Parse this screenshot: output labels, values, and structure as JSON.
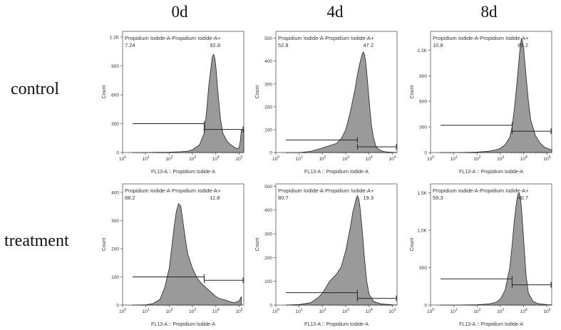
{
  "columns": [
    "0d",
    "4d",
    "8d"
  ],
  "rows": [
    "control",
    "treatment"
  ],
  "chart_data": [
    {
      "type": "area",
      "condition": "control",
      "day": "0d",
      "gate_title": "Propidium Iodide-A-Propidium Iodide-A+",
      "gate_left_pct": "7.24",
      "gate_right_pct": "92.8",
      "xlabel": "FL13-A :: Propidium Iodide-A",
      "ylabel": "Count",
      "yticks": [
        "0",
        "300",
        "600",
        "900",
        "1.2K"
      ],
      "ylim": [
        0,
        1260
      ],
      "x": [
        0.4,
        1.0,
        1.5,
        2.0,
        2.5,
        2.8,
        3.0,
        3.3,
        3.5,
        3.6,
        3.7,
        3.8,
        3.85,
        3.9,
        3.95,
        4.0,
        4.1,
        4.2,
        4.3,
        4.5,
        4.7,
        4.9,
        5.0,
        5.05,
        5.1,
        5.2
      ],
      "values": [
        0,
        0,
        2,
        4,
        8,
        15,
        30,
        80,
        200,
        420,
        700,
        900,
        1000,
        1020,
        990,
        900,
        600,
        350,
        200,
        110,
        70,
        40,
        50,
        120,
        240,
        240
      ],
      "gate_left_x": [
        0.4,
        3.5
      ],
      "gate_right_x": [
        3.5,
        5.2
      ],
      "gate_left_y": 300,
      "gate_right_y": 240
    },
    {
      "type": "area",
      "condition": "control",
      "day": "4d",
      "gate_title": "Propidium Iodide-A-Propidium Iodide-A+",
      "gate_left_pct": "52.8",
      "gate_right_pct": "47.2",
      "xlabel": "FL13-A :: Propidium Iodide-A",
      "ylabel": "Count",
      "yticks": [
        "0",
        "100",
        "200",
        "300",
        "400",
        "500"
      ],
      "ylim": [
        0,
        530
      ],
      "x": [
        0.4,
        1.0,
        1.5,
        2.0,
        2.3,
        2.6,
        2.8,
        3.0,
        3.2,
        3.4,
        3.5,
        3.6,
        3.7,
        3.75,
        3.8,
        3.85,
        3.9,
        4.0,
        4.1,
        4.2,
        4.3,
        4.5,
        4.7,
        5.0,
        5.2
      ],
      "values": [
        0,
        0,
        5,
        20,
        30,
        40,
        60,
        100,
        180,
        280,
        340,
        390,
        430,
        440,
        430,
        400,
        350,
        230,
        120,
        60,
        25,
        8,
        3,
        1,
        0
      ],
      "gate_left_x": [
        0.4,
        3.5
      ],
      "gate_right_x": [
        3.5,
        5.2
      ],
      "gate_left_y": 55,
      "gate_right_y": 25
    },
    {
      "type": "area",
      "condition": "control",
      "day": "8d",
      "gate_title": "Propidium Iodide-A-Propidium Iodide-A+",
      "gate_left_pct": "10.8",
      "gate_right_pct": "89.2",
      "xlabel": "FL13-A :: Propidium Iodide-A",
      "ylabel": "Count",
      "yticks": [
        "0",
        "300",
        "600",
        "900",
        "1.2K"
      ],
      "ylim": [
        0,
        1420
      ],
      "x": [
        0.4,
        1.0,
        1.5,
        2.0,
        2.5,
        2.8,
        3.0,
        3.2,
        3.4,
        3.5,
        3.6,
        3.7,
        3.8,
        3.85,
        3.9,
        3.95,
        4.0,
        4.1,
        4.2,
        4.3,
        4.5,
        4.7,
        4.9,
        5.0,
        5.1,
        5.2
      ],
      "values": [
        0,
        0,
        2,
        5,
        15,
        30,
        50,
        90,
        180,
        300,
        520,
        800,
        1100,
        1250,
        1330,
        1300,
        1200,
        900,
        600,
        380,
        200,
        110,
        60,
        50,
        40,
        30
      ],
      "gate_left_x": [
        0.4,
        3.5
      ],
      "gate_right_x": [
        3.5,
        5.2
      ],
      "gate_left_y": 320,
      "gate_right_y": 250
    },
    {
      "type": "area",
      "condition": "treatment",
      "day": "0d",
      "gate_title": "Propidium Iodide-A-Propidium Iodide-A+",
      "gate_left_pct": "88.2",
      "gate_right_pct": "11.8",
      "xlabel": "FL13-A :: Propidium Iodide-A",
      "ylabel": "Count",
      "yticks": [
        "0",
        "100",
        "200",
        "300",
        "400"
      ],
      "ylim": [
        0,
        430
      ],
      "x": [
        0.4,
        1.0,
        1.3,
        1.6,
        1.8,
        2.0,
        2.1,
        2.2,
        2.3,
        2.4,
        2.5,
        2.6,
        2.7,
        2.8,
        3.0,
        3.2,
        3.4,
        3.6,
        3.8,
        4.0,
        4.2,
        4.4,
        4.6,
        4.8,
        5.0,
        5.1
      ],
      "values": [
        0,
        1,
        5,
        20,
        60,
        130,
        200,
        270,
        330,
        360,
        350,
        290,
        230,
        180,
        130,
        95,
        75,
        60,
        45,
        30,
        22,
        18,
        12,
        8,
        15,
        30
      ],
      "gate_left_x": [
        0.4,
        3.5
      ],
      "gate_right_x": [
        3.5,
        5.2
      ],
      "gate_left_y": 100,
      "gate_right_y": 88
    },
    {
      "type": "area",
      "condition": "treatment",
      "day": "4d",
      "gate_title": "Propidium Iodide-A-Propidium Iodide-A+",
      "gate_left_pct": "80.7",
      "gate_right_pct": "19.3",
      "xlabel": "FL13-A :: Propidium Iodide-A",
      "ylabel": "Count",
      "yticks": [
        "0",
        "100",
        "200",
        "300",
        "400",
        "500"
      ],
      "ylim": [
        0,
        510
      ],
      "x": [
        0.4,
        1.0,
        1.5,
        1.8,
        2.0,
        2.3,
        2.6,
        2.8,
        3.0,
        3.2,
        3.3,
        3.4,
        3.45,
        3.5,
        3.55,
        3.6,
        3.7,
        3.8,
        3.9,
        4.0,
        4.2,
        4.5,
        5.0,
        5.2
      ],
      "values": [
        0,
        2,
        10,
        30,
        50,
        100,
        130,
        160,
        230,
        330,
        390,
        430,
        450,
        460,
        450,
        420,
        320,
        200,
        100,
        45,
        15,
        5,
        1,
        0
      ],
      "gate_left_x": [
        0.4,
        3.5
      ],
      "gate_right_x": [
        3.5,
        5.2
      ],
      "gate_left_y": 52,
      "gate_right_y": 28
    },
    {
      "type": "area",
      "condition": "treatment",
      "day": "8d",
      "gate_title": "Propidium Iodide-A-Propidium Iodide-A+",
      "gate_left_pct": "59.3",
      "gate_right_pct": "40.7",
      "xlabel": "FL13-A :: Propidium Iodide-A",
      "ylabel": "Count",
      "yticks": [
        "0",
        "500",
        "1.0K",
        "1.5K"
      ],
      "ylim": [
        0,
        1620
      ],
      "x": [
        0.4,
        1.0,
        1.5,
        2.0,
        2.5,
        2.8,
        3.0,
        3.2,
        3.4,
        3.5,
        3.6,
        3.7,
        3.75,
        3.8,
        3.85,
        3.9,
        4.0,
        4.1,
        4.2,
        4.4,
        4.6,
        5.0,
        5.2
      ],
      "values": [
        0,
        0,
        2,
        5,
        15,
        35,
        80,
        200,
        500,
        800,
        1150,
        1400,
        1480,
        1500,
        1450,
        1300,
        850,
        400,
        160,
        50,
        20,
        5,
        2
      ],
      "gate_left_x": [
        0.4,
        3.5
      ],
      "gate_right_x": [
        3.5,
        5.2
      ],
      "gate_left_y": 350,
      "gate_right_y": 270
    }
  ]
}
